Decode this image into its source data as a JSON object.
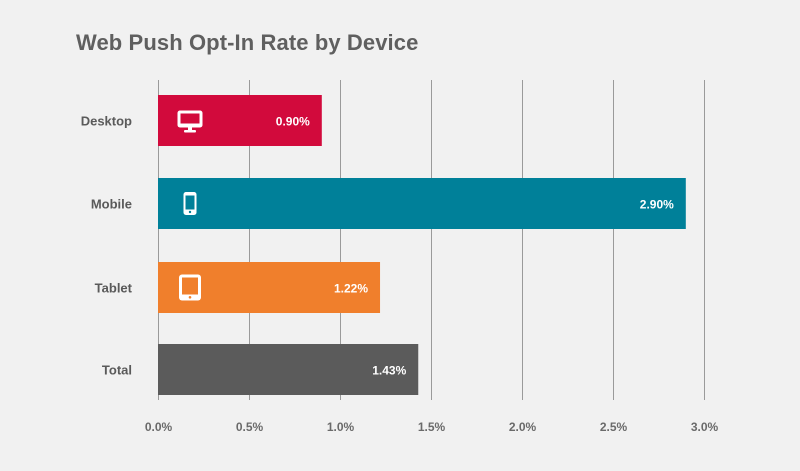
{
  "chart_data": {
    "type": "bar",
    "orientation": "horizontal",
    "title": "Web Push Opt-In Rate by Device",
    "categories": [
      "Desktop",
      "Mobile",
      "Tablet",
      "Total"
    ],
    "values": [
      0.9,
      2.9,
      1.22,
      1.43
    ],
    "value_labels": [
      "0.90%",
      "2.90%",
      "1.22%",
      "1.43%"
    ],
    "icons": [
      "desktop-monitor-icon",
      "mobile-phone-icon",
      "tablet-icon",
      ""
    ],
    "colors": [
      "#d20a3c",
      "#008099",
      "#f07f2c",
      "#5b5b5b"
    ],
    "xlim": [
      0,
      3.0
    ],
    "x_ticks": [
      0,
      0.5,
      1.0,
      1.5,
      2.0,
      2.5,
      3.0
    ],
    "x_tick_labels": [
      "0.0%",
      "0.5%",
      "1.0%",
      "1.5%",
      "2.0%",
      "2.5%",
      "3.0%"
    ],
    "grid": "vertical",
    "grid_color": "#9a9a9a",
    "legend": "none"
  }
}
